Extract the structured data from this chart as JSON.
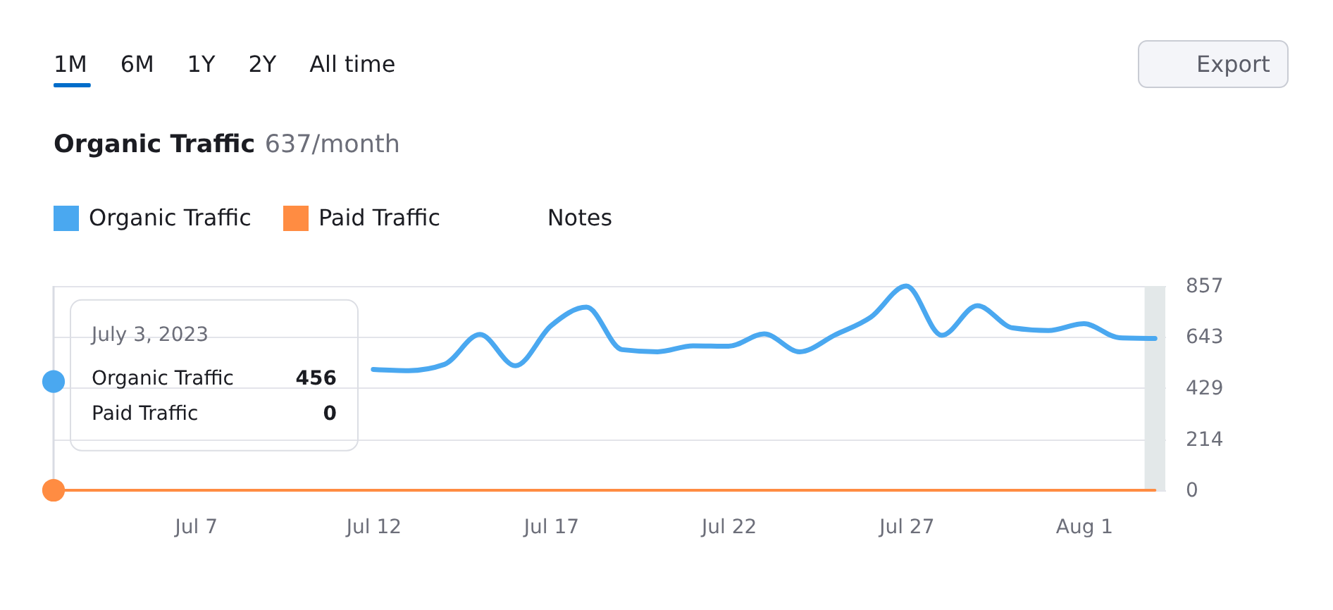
{
  "chart_data": {
    "type": "line",
    "title": "Organic Traffic",
    "subtitle": "637/month",
    "x": [
      "2023-07-03",
      "2023-07-04",
      "2023-07-05",
      "2023-07-06",
      "2023-07-07",
      "2023-07-08",
      "2023-07-09",
      "2023-07-10",
      "2023-07-11",
      "2023-07-12",
      "2023-07-13",
      "2023-07-14",
      "2023-07-15",
      "2023-07-16",
      "2023-07-17",
      "2023-07-18",
      "2023-07-19",
      "2023-07-20",
      "2023-07-21",
      "2023-07-22",
      "2023-07-23",
      "2023-07-24",
      "2023-07-25",
      "2023-07-26",
      "2023-07-27",
      "2023-07-28",
      "2023-07-29",
      "2023-07-30",
      "2023-07-31",
      "2023-08-01",
      "2023-08-02",
      "2023-08-03"
    ],
    "series": [
      {
        "name": "Organic Traffic",
        "color": "#4aa8f0",
        "values": [
          456,
          null,
          null,
          null,
          null,
          null,
          null,
          null,
          null,
          507,
          502,
          528,
          654,
          522,
          690,
          768,
          590,
          581,
          606,
          604,
          656,
          581,
          652,
          726,
          857,
          650,
          774,
          681,
          670,
          699,
          640,
          637
        ]
      },
      {
        "name": "Paid Traffic",
        "color": "#ff8c42",
        "values": [
          0,
          0,
          0,
          0,
          0,
          0,
          0,
          0,
          0,
          0,
          0,
          0,
          0,
          0,
          0,
          0,
          0,
          0,
          0,
          0,
          0,
          0,
          0,
          0,
          0,
          0,
          0,
          0,
          0,
          0,
          0,
          0
        ]
      }
    ],
    "xlim": [
      "2023-07-03",
      "2023-08-03T07:00"
    ],
    "xticks": [
      {
        "value": "2023-07-07",
        "label": "Jul 7"
      },
      {
        "value": "2023-07-12",
        "label": "Jul 12"
      },
      {
        "value": "2023-07-17",
        "label": "Jul 17"
      },
      {
        "value": "2023-07-22",
        "label": "Jul 22"
      },
      {
        "value": "2023-07-27",
        "label": "Jul 27"
      },
      {
        "value": "2023-08-01",
        "label": "Aug 1"
      }
    ],
    "ylim": [
      0,
      857
    ],
    "yticks": [
      0,
      214,
      429,
      643,
      857
    ],
    "grid": "y",
    "legend": "top left",
    "bands": [
      {
        "axis": "x",
        "from": "2023-08-02T17:00",
        "to": "2023-08-03T07:00",
        "color": "#e3e8e9"
      }
    ],
    "annotations": [
      "1M",
      "6M",
      "1Y",
      "2Y",
      "All time",
      "Export",
      "Notes",
      {
        "text": "July 3, 2023",
        "x": "2023-07-03",
        "y": 456
      },
      "456",
      "0"
    ]
  }
}
